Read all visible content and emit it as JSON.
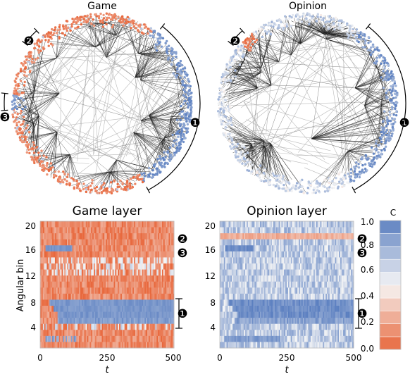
{
  "networks": [
    {
      "title": "Game",
      "markers": [
        "❷",
        "❸",
        "❶"
      ]
    },
    {
      "title": "Opinion",
      "markers": [
        "❷",
        "❶"
      ]
    }
  ],
  "heatmaps": [
    {
      "title": "Game layer",
      "ylabel": "Angular bin",
      "yticks": [
        "4",
        "8",
        "12",
        "16",
        "20"
      ],
      "xticks": [
        "0",
        "250",
        "500"
      ],
      "xlabel": "t",
      "markers": [
        "❷",
        "❸",
        "❶"
      ]
    },
    {
      "title": "Opinion layer",
      "yticks": [
        "4",
        "8",
        "12",
        "16",
        "20"
      ],
      "xticks": [
        "0",
        "250",
        "500"
      ],
      "xlabel": "t",
      "markers": [
        "❷",
        "❸",
        "❶"
      ]
    }
  ],
  "colorbar": {
    "label": "C",
    "ticks": [
      "0.0",
      "0.2",
      "0.4",
      "0.6",
      "0.8",
      "1.0"
    ],
    "range": [
      0,
      1
    ]
  },
  "colors": {
    "low": "#e8663a",
    "mid": "#f6f6f6",
    "high": "#5b7fc0",
    "edge": "#222222"
  }
}
